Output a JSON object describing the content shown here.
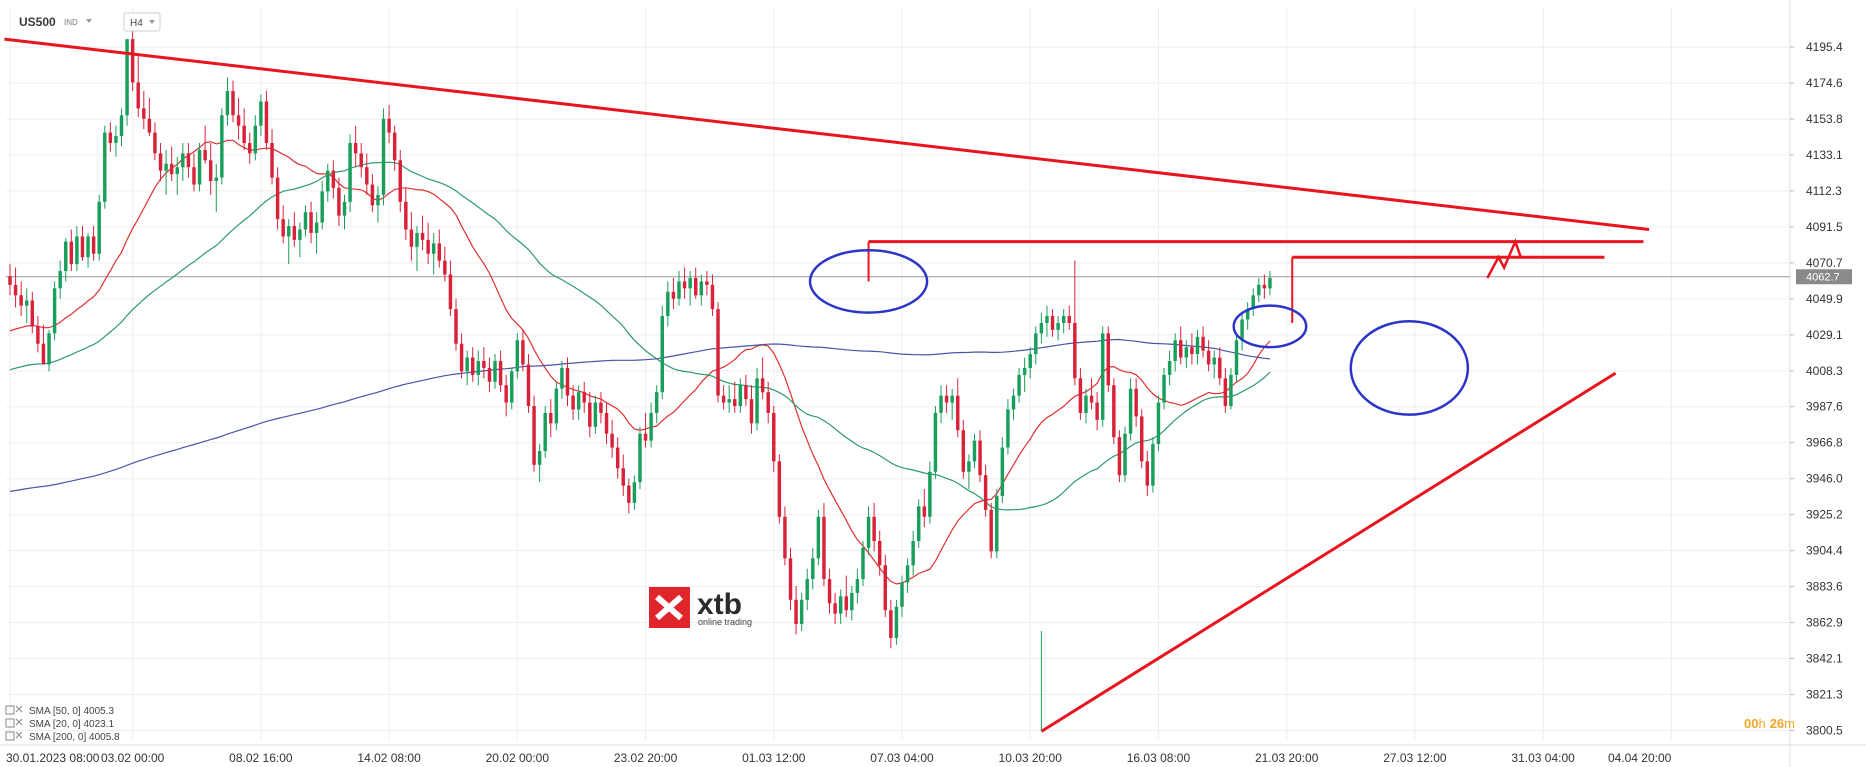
{
  "header": {
    "symbol": "US500",
    "market": "IND",
    "timeframe": "H4",
    "dropdown_icon": "caret-down-icon"
  },
  "price_tag": "4062.7",
  "countdown": {
    "hours": "00",
    "h_unit": "h",
    "minutes": "26",
    "m_unit": "m"
  },
  "logo": {
    "name": "xtb",
    "tagline": "online trading",
    "accent": "#e0262a"
  },
  "legend": [
    {
      "label": "SMA [50, 0] 4005.3"
    },
    {
      "label": "SMA [20, 0] 4023.1"
    },
    {
      "label": "SMA [200, 0] 4005.8"
    }
  ],
  "colors": {
    "bull": "#1a9e5c",
    "bear": "#d8223a",
    "sma20": "#e03030",
    "sma50": "#2e9a6a",
    "sma200": "#4a55a8",
    "trendline": "#e8141e",
    "ellipse": "#2b36c8",
    "grid": "#eeeeee",
    "current_price_line": "#9a9a9a"
  },
  "chart_data": {
    "type": "candlestick",
    "instrument": "US500",
    "timeframe": "H4",
    "y_axis": {
      "ticks": [
        4195.4,
        4174.6,
        4153.8,
        4133.1,
        4112.3,
        4091.5,
        4070.7,
        4049.9,
        4029.1,
        4008.3,
        3987.6,
        3966.8,
        3946.0,
        3925.2,
        3904.4,
        3883.6,
        3862.9,
        3842.1,
        3821.3,
        3800.5
      ],
      "range": [
        3795.0,
        4218.0
      ]
    },
    "x_axis": {
      "labels": [
        "30.01.2023  08:00",
        "03.02  00:00",
        "08.02  16:00",
        "14.02  08:00",
        "20.02  00:00",
        "23.02  20:00",
        "01.03  12:00",
        "07.03  04:00",
        "10.03  20:00",
        "16.03  08:00",
        "21.03  20:00",
        "27.03  12:00",
        "31.03  04:00",
        "04.04  20:00"
      ],
      "label_bars": [
        0,
        22,
        45,
        68,
        91,
        114,
        137,
        160,
        183,
        206,
        229,
        252,
        275,
        298
      ]
    },
    "candles": [
      [
        4063,
        4070,
        4052,
        4058
      ],
      [
        4058,
        4068,
        4045,
        4052
      ],
      [
        4052,
        4060,
        4040,
        4046
      ],
      [
        4046,
        4056,
        4036,
        4049
      ],
      [
        4049,
        4054,
        4030,
        4034
      ],
      [
        4034,
        4040,
        4019,
        4024
      ],
      [
        4024,
        4035,
        4015,
        4012
      ],
      [
        4012,
        4032,
        4008,
        4030
      ],
      [
        4030,
        4060,
        4026,
        4056
      ],
      [
        4056,
        4072,
        4050,
        4066
      ],
      [
        4066,
        4085,
        4060,
        4083
      ],
      [
        4083,
        4090,
        4066,
        4070
      ],
      [
        4070,
        4092,
        4066,
        4086
      ],
      [
        4086,
        4092,
        4072,
        4074
      ],
      [
        4074,
        4088,
        4068,
        4086
      ],
      [
        4086,
        4092,
        4072,
        4076
      ],
      [
        4076,
        4110,
        4072,
        4106
      ],
      [
        4106,
        4150,
        4102,
        4146
      ],
      [
        4146,
        4152,
        4135,
        4140
      ],
      [
        4140,
        4150,
        4132,
        4144
      ],
      [
        4144,
        4160,
        4138,
        4156
      ],
      [
        4156,
        4200,
        4150,
        4200
      ],
      [
        4200,
        4212,
        4170,
        4175
      ],
      [
        4175,
        4190,
        4155,
        4160
      ],
      [
        4160,
        4170,
        4148,
        4154
      ],
      [
        4154,
        4166,
        4144,
        4146
      ],
      [
        4146,
        4152,
        4130,
        4134
      ],
      [
        4134,
        4140,
        4118,
        4124
      ],
      [
        4124,
        4136,
        4110,
        4128
      ],
      [
        4128,
        4138,
        4118,
        4122
      ],
      [
        4122,
        4132,
        4110,
        4126
      ],
      [
        4126,
        4140,
        4118,
        4134
      ],
      [
        4134,
        4140,
        4120,
        4126
      ],
      [
        4126,
        4134,
        4112,
        4116
      ],
      [
        4116,
        4140,
        4112,
        4136
      ],
      [
        4136,
        4150,
        4128,
        4130
      ],
      [
        4130,
        4140,
        4110,
        4118
      ],
      [
        4118,
        4128,
        4100,
        4120
      ],
      [
        4120,
        4160,
        4116,
        4156
      ],
      [
        4156,
        4178,
        4150,
        4170
      ],
      [
        4170,
        4176,
        4152,
        4156
      ],
      [
        4156,
        4166,
        4142,
        4150
      ],
      [
        4150,
        4160,
        4136,
        4140
      ],
      [
        4140,
        4146,
        4128,
        4134
      ],
      [
        4134,
        4156,
        4130,
        4150
      ],
      [
        4150,
        4168,
        4144,
        4164
      ],
      [
        4164,
        4170,
        4136,
        4140
      ],
      [
        4140,
        4148,
        4116,
        4120
      ],
      [
        4120,
        4126,
        4090,
        4096
      ],
      [
        4096,
        4104,
        4082,
        4086
      ],
      [
        4086,
        4096,
        4070,
        4092
      ],
      [
        4092,
        4100,
        4080,
        4084
      ],
      [
        4084,
        4094,
        4074,
        4090
      ],
      [
        4090,
        4104,
        4086,
        4100
      ],
      [
        4100,
        4106,
        4082,
        4088
      ],
      [
        4088,
        4100,
        4076,
        4094
      ],
      [
        4094,
        4118,
        4090,
        4112
      ],
      [
        4112,
        4128,
        4106,
        4124
      ],
      [
        4124,
        4130,
        4108,
        4114
      ],
      [
        4114,
        4120,
        4092,
        4098
      ],
      [
        4098,
        4110,
        4090,
        4106
      ],
      [
        4106,
        4145,
        4100,
        4140
      ],
      [
        4140,
        4150,
        4126,
        4134
      ],
      [
        4134,
        4140,
        4120,
        4126
      ],
      [
        4126,
        4134,
        4110,
        4116
      ],
      [
        4116,
        4122,
        4100,
        4104
      ],
      [
        4104,
        4115,
        4094,
        4110
      ],
      [
        4110,
        4160,
        4104,
        4154
      ],
      [
        4154,
        4162,
        4140,
        4146
      ],
      [
        4146,
        4150,
        4124,
        4130
      ],
      [
        4130,
        4136,
        4100,
        4106
      ],
      [
        4106,
        4114,
        4084,
        4090
      ],
      [
        4090,
        4100,
        4072,
        4080
      ],
      [
        4080,
        4092,
        4066,
        4088
      ],
      [
        4088,
        4098,
        4078,
        4084
      ],
      [
        4084,
        4094,
        4070,
        4076
      ],
      [
        4076,
        4088,
        4064,
        4082
      ],
      [
        4082,
        4090,
        4068,
        4072
      ],
      [
        4072,
        4080,
        4060,
        4064
      ],
      [
        4064,
        4072,
        4040,
        4044
      ],
      [
        4044,
        4050,
        4020,
        4024
      ],
      [
        4024,
        4030,
        4004,
        4008
      ],
      [
        4008,
        4020,
        4000,
        4016
      ],
      [
        4016,
        4022,
        4002,
        4006
      ],
      [
        4006,
        4020,
        4000,
        4014
      ],
      [
        4014,
        4022,
        4004,
        4010
      ],
      [
        4010,
        4016,
        3996,
        4002
      ],
      [
        4002,
        4018,
        3998,
        4014
      ],
      [
        4014,
        4020,
        3996,
        4000
      ],
      [
        4000,
        4006,
        3982,
        3990
      ],
      [
        3990,
        4010,
        3986,
        4008
      ],
      [
        4008,
        4030,
        4004,
        4026
      ],
      [
        4026,
        4032,
        4008,
        4012
      ],
      [
        4012,
        4018,
        3984,
        3988
      ],
      [
        3988,
        3994,
        3950,
        3954
      ],
      [
        3954,
        3966,
        3944,
        3962
      ],
      [
        3962,
        3988,
        3958,
        3984
      ],
      [
        3984,
        3992,
        3970,
        3978
      ],
      [
        3978,
        4002,
        3974,
        3998
      ],
      [
        3998,
        4014,
        3992,
        4010
      ],
      [
        4010,
        4016,
        3988,
        3994
      ],
      [
        3994,
        4000,
        3980,
        3986
      ],
      [
        3986,
        4000,
        3980,
        3996
      ],
      [
        3996,
        4002,
        3984,
        3990
      ],
      [
        3990,
        3996,
        3970,
        3976
      ],
      [
        3976,
        3994,
        3972,
        3990
      ],
      [
        3990,
        3996,
        3978,
        3984
      ],
      [
        3984,
        3990,
        3966,
        3972
      ],
      [
        3972,
        3980,
        3958,
        3964
      ],
      [
        3964,
        3970,
        3946,
        3952
      ],
      [
        3952,
        3960,
        3936,
        3942
      ],
      [
        3942,
        3946,
        3926,
        3932
      ],
      [
        3932,
        3948,
        3928,
        3944
      ],
      [
        3944,
        3976,
        3940,
        3972
      ],
      [
        3972,
        3984,
        3964,
        3968
      ],
      [
        3968,
        3990,
        3964,
        3984
      ],
      [
        3984,
        4000,
        3978,
        3996
      ],
      [
        3996,
        4046,
        3992,
        4040
      ],
      [
        4040,
        4060,
        4034,
        4054
      ],
      [
        4054,
        4062,
        4044,
        4050
      ],
      [
        4050,
        4066,
        4046,
        4060
      ],
      [
        4060,
        4068,
        4050,
        4056
      ],
      [
        4056,
        4066,
        4046,
        4062
      ],
      [
        4062,
        4068,
        4050,
        4052
      ],
      [
        4052,
        4064,
        4046,
        4060
      ],
      [
        4060,
        4066,
        4052,
        4058
      ],
      [
        4058,
        4064,
        4040,
        4044
      ],
      [
        4044,
        4048,
        3990,
        3994
      ],
      [
        3994,
        4000,
        3986,
        3990
      ],
      [
        3990,
        4000,
        3984,
        3992
      ],
      [
        3992,
        4002,
        3984,
        3988
      ],
      [
        3988,
        4004,
        3984,
        4000
      ],
      [
        4000,
        4006,
        3988,
        3992
      ],
      [
        3992,
        4000,
        3972,
        3978
      ],
      [
        3978,
        4010,
        3974,
        4004
      ],
      [
        4004,
        4016,
        3992,
        3996
      ],
      [
        3996,
        4002,
        3978,
        3984
      ],
      [
        3984,
        3988,
        3950,
        3956
      ],
      [
        3956,
        3960,
        3920,
        3924
      ],
      [
        3924,
        3930,
        3896,
        3900
      ],
      [
        3900,
        3906,
        3870,
        3876
      ],
      [
        3876,
        3884,
        3856,
        3862
      ],
      [
        3862,
        3880,
        3858,
        3876
      ],
      [
        3876,
        3894,
        3870,
        3888
      ],
      [
        3888,
        3906,
        3882,
        3900
      ],
      [
        3900,
        3928,
        3896,
        3924
      ],
      [
        3924,
        3932,
        3884,
        3888
      ],
      [
        3888,
        3894,
        3868,
        3874
      ],
      [
        3874,
        3880,
        3862,
        3868
      ],
      [
        3868,
        3882,
        3862,
        3878
      ],
      [
        3878,
        3890,
        3866,
        3870
      ],
      [
        3870,
        3884,
        3864,
        3880
      ],
      [
        3880,
        3894,
        3874,
        3888
      ],
      [
        3888,
        3910,
        3884,
        3906
      ],
      [
        3906,
        3930,
        3902,
        3924
      ],
      [
        3924,
        3932,
        3904,
        3910
      ],
      [
        3910,
        3916,
        3890,
        3896
      ],
      [
        3896,
        3902,
        3866,
        3870
      ],
      [
        3870,
        3876,
        3848,
        3854
      ],
      [
        3854,
        3876,
        3850,
        3872
      ],
      [
        3872,
        3890,
        3866,
        3886
      ],
      [
        3886,
        3900,
        3880,
        3896
      ],
      [
        3896,
        3916,
        3890,
        3910
      ],
      [
        3910,
        3934,
        3906,
        3930
      ],
      [
        3930,
        3940,
        3918,
        3924
      ],
      [
        3924,
        3956,
        3920,
        3950
      ],
      [
        3950,
        3988,
        3946,
        3984
      ],
      [
        3984,
        4000,
        3978,
        3994
      ],
      [
        3994,
        4000,
        3984,
        3990
      ],
      [
        3990,
        3998,
        3980,
        3994
      ],
      [
        3994,
        4004,
        3970,
        3974
      ],
      [
        3974,
        3980,
        3946,
        3950
      ],
      [
        3950,
        3960,
        3940,
        3956
      ],
      [
        3956,
        3972,
        3952,
        3968
      ],
      [
        3968,
        3974,
        3944,
        3948
      ],
      [
        3948,
        3954,
        3924,
        3928
      ],
      [
        3928,
        3932,
        3900,
        3904
      ],
      [
        3904,
        3940,
        3900,
        3936
      ],
      [
        3936,
        3970,
        3932,
        3964
      ],
      [
        3964,
        3992,
        3960,
        3986
      ],
      [
        3986,
        3998,
        3980,
        3994
      ],
      [
        3994,
        4010,
        3990,
        4006
      ],
      [
        4006,
        4016,
        3996,
        4010
      ],
      [
        4010,
        4022,
        4004,
        4018
      ],
      [
        4018,
        4034,
        4012,
        4030
      ],
      [
        4030,
        4042,
        4024,
        4036
      ],
      [
        4036,
        4046,
        4028,
        4040
      ],
      [
        4040,
        4044,
        4028,
        4032
      ],
      [
        4032,
        4040,
        4026,
        4036
      ],
      [
        4036,
        4044,
        4030,
        4040
      ],
      [
        4040,
        4046,
        4032,
        4036
      ],
      [
        4036,
        4072,
        4000,
        4004
      ],
      [
        4004,
        4010,
        3980,
        3984
      ],
      [
        3984,
        3998,
        3978,
        3994
      ],
      [
        3994,
        4004,
        3986,
        3990
      ],
      [
        3990,
        3996,
        3974,
        3980
      ],
      [
        3980,
        4034,
        3976,
        4030
      ],
      [
        4030,
        4034,
        3996,
        4000
      ],
      [
        4000,
        4004,
        3966,
        3970
      ],
      [
        3970,
        3974,
        3944,
        3948
      ],
      [
        3948,
        3976,
        3944,
        3972
      ],
      [
        3972,
        4004,
        3968,
        3998
      ],
      [
        3998,
        4004,
        3976,
        3982
      ],
      [
        3982,
        3986,
        3952,
        3956
      ],
      [
        3956,
        3962,
        3936,
        3942
      ],
      [
        3942,
        3970,
        3938,
        3966
      ],
      [
        3966,
        3994,
        3962,
        3990
      ],
      [
        3990,
        4010,
        3986,
        4006
      ],
      [
        4006,
        4020,
        4000,
        4014
      ],
      [
        4014,
        4030,
        4008,
        4026
      ],
      [
        4026,
        4034,
        4012,
        4016
      ],
      [
        4016,
        4026,
        4010,
        4022
      ],
      [
        4022,
        4030,
        4012,
        4018
      ],
      [
        4018,
        4032,
        4012,
        4028
      ],
      [
        4028,
        4034,
        4016,
        4020
      ],
      [
        4020,
        4026,
        4008,
        4012
      ],
      [
        4012,
        4020,
        4004,
        4016
      ],
      [
        4016,
        4022,
        4000,
        4004
      ],
      [
        4004,
        4010,
        3984,
        3988
      ],
      [
        3988,
        4010,
        3986,
        4006
      ],
      [
        4006,
        4030,
        4002,
        4026
      ],
      [
        4026,
        4042,
        4020,
        4038
      ],
      [
        4038,
        4048,
        4032,
        4044
      ],
      [
        4044,
        4056,
        4040,
        4052
      ],
      [
        4052,
        4062,
        4048,
        4058
      ],
      [
        4058,
        4064,
        4050,
        4056
      ],
      [
        4056,
        4066,
        4052,
        4062
      ]
    ],
    "series": [
      {
        "name": "SMA [20, 0] 4023.1",
        "period": 20
      },
      {
        "name": "SMA [50, 0] 4005.3",
        "period": 50
      },
      {
        "name": "SMA [200, 0] 4005.8",
        "period": 200
      }
    ],
    "annotations": {
      "resistance_trendline": {
        "from": [
          -1,
          4200
        ],
        "to": [
          294,
          4090
        ]
      },
      "support_trendline": {
        "from": [
          185,
          3800
        ],
        "to": [
          288,
          4007
        ]
      },
      "resistance_level_1": {
        "from": [
          154,
          4083
        ],
        "to": [
          293,
          4083
        ]
      },
      "resistance_level_2": {
        "from": [
          230,
          4074
        ],
        "to": [
          286,
          4074
        ]
      },
      "forecast_path": [
        [
          265,
          4062
        ],
        [
          267,
          4074
        ],
        [
          268,
          4068
        ],
        [
          270,
          4083
        ],
        [
          271,
          4074
        ]
      ],
      "ellipses": [
        {
          "center": [
            154,
            4060
          ],
          "rx": 10.5,
          "ry": 18
        },
        {
          "center": [
            226,
            4034
          ],
          "rx": 6.5,
          "ry": 12
        },
        {
          "center": [
            251,
            4010
          ],
          "rx": 10.5,
          "ry": 27
        }
      ]
    }
  }
}
